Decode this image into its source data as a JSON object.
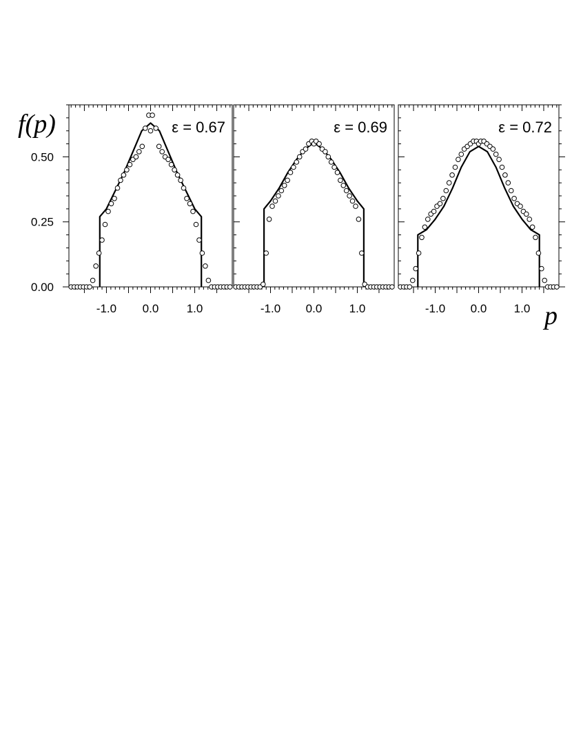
{
  "figure": {
    "ylabel": "f(p)",
    "xlabel": "p",
    "y_tick_labels": [
      "0.00",
      "0.25",
      "0.50"
    ],
    "x_tick_labels": [
      "-1.0",
      "0.0",
      "1.0"
    ]
  },
  "chart_data": [
    {
      "type": "line",
      "title": "ε = 0.67",
      "xlim": [
        -1.85,
        1.85
      ],
      "ylim": [
        0,
        0.7
      ],
      "grid": false,
      "series": [
        {
          "style": "solid-line",
          "x": [
            -1.15,
            -1.15,
            -1.0,
            -0.8,
            -0.6,
            -0.4,
            -0.2,
            0.0,
            0.2,
            0.4,
            0.6,
            0.8,
            1.0,
            1.15,
            1.15
          ],
          "y": [
            0.0,
            0.27,
            0.3,
            0.37,
            0.44,
            0.52,
            0.6,
            0.63,
            0.6,
            0.52,
            0.44,
            0.37,
            0.3,
            0.27,
            0.0
          ]
        },
        {
          "style": "open-circles",
          "x": [
            -1.8,
            -1.73,
            -1.66,
            -1.59,
            -1.52,
            -1.45,
            -1.38,
            -1.31,
            -1.24,
            -1.17,
            -1.1,
            -1.03,
            -0.96,
            -0.89,
            -0.82,
            -0.75,
            -0.68,
            -0.61,
            -0.54,
            -0.47,
            -0.4,
            -0.33,
            -0.26,
            -0.19,
            -0.12,
            -0.04,
            0.0,
            0.04,
            0.12,
            0.19,
            0.26,
            0.33,
            0.4,
            0.47,
            0.54,
            0.61,
            0.68,
            0.75,
            0.82,
            0.89,
            0.96,
            1.03,
            1.1,
            1.17,
            1.24,
            1.31,
            1.38,
            1.45,
            1.52,
            1.59,
            1.66,
            1.73,
            1.8
          ],
          "y": [
            0.0,
            0.0,
            0.0,
            0.0,
            0.0,
            0.0,
            0.0,
            0.025,
            0.08,
            0.13,
            0.18,
            0.24,
            0.29,
            0.32,
            0.34,
            0.38,
            0.41,
            0.43,
            0.45,
            0.47,
            0.49,
            0.5,
            0.52,
            0.54,
            0.61,
            0.66,
            0.6,
            0.66,
            0.61,
            0.54,
            0.52,
            0.5,
            0.49,
            0.47,
            0.45,
            0.43,
            0.41,
            0.38,
            0.34,
            0.32,
            0.29,
            0.24,
            0.18,
            0.13,
            0.08,
            0.025,
            0.0,
            0.0,
            0.0,
            0.0,
            0.0,
            0.0,
            0.0
          ]
        }
      ]
    },
    {
      "type": "line",
      "title": "ε = 0.69",
      "xlim": [
        -1.85,
        1.85
      ],
      "ylim": [
        0,
        0.7
      ],
      "grid": false,
      "series": [
        {
          "style": "solid-line",
          "x": [
            -1.15,
            -1.15,
            -1.0,
            -0.8,
            -0.6,
            -0.4,
            -0.2,
            0.0,
            0.2,
            0.4,
            0.6,
            0.8,
            1.0,
            1.15,
            1.15
          ],
          "y": [
            0.0,
            0.3,
            0.33,
            0.38,
            0.44,
            0.49,
            0.53,
            0.555,
            0.53,
            0.49,
            0.44,
            0.38,
            0.33,
            0.3,
            0.0
          ]
        },
        {
          "style": "open-circles",
          "x": [
            -1.8,
            -1.73,
            -1.66,
            -1.59,
            -1.52,
            -1.45,
            -1.38,
            -1.31,
            -1.24,
            -1.17,
            -1.1,
            -1.03,
            -0.96,
            -0.89,
            -0.82,
            -0.75,
            -0.68,
            -0.61,
            -0.54,
            -0.47,
            -0.4,
            -0.33,
            -0.26,
            -0.19,
            -0.12,
            -0.05,
            0.0,
            0.05,
            0.12,
            0.19,
            0.26,
            0.33,
            0.4,
            0.47,
            0.54,
            0.61,
            0.68,
            0.75,
            0.82,
            0.89,
            0.96,
            1.03,
            1.1,
            1.17,
            1.24,
            1.31,
            1.38,
            1.45,
            1.52,
            1.59,
            1.66,
            1.73,
            1.8
          ],
          "y": [
            0.0,
            0.0,
            0.0,
            0.0,
            0.0,
            0.0,
            0.0,
            0.0,
            0.0,
            0.01,
            0.13,
            0.26,
            0.31,
            0.33,
            0.35,
            0.37,
            0.39,
            0.41,
            0.44,
            0.46,
            0.48,
            0.5,
            0.52,
            0.53,
            0.55,
            0.56,
            0.55,
            0.56,
            0.55,
            0.53,
            0.52,
            0.5,
            0.48,
            0.46,
            0.44,
            0.41,
            0.39,
            0.37,
            0.35,
            0.33,
            0.31,
            0.26,
            0.13,
            0.01,
            0.0,
            0.0,
            0.0,
            0.0,
            0.0,
            0.0,
            0.0,
            0.0,
            0.0
          ]
        }
      ]
    },
    {
      "type": "line",
      "title": "ε = 0.72",
      "xlim": [
        -1.85,
        1.85
      ],
      "ylim": [
        0,
        0.7
      ],
      "grid": false,
      "series": [
        {
          "style": "solid-line",
          "x": [
            -1.4,
            -1.4,
            -1.2,
            -1.0,
            -0.8,
            -0.6,
            -0.4,
            -0.2,
            0.0,
            0.2,
            0.4,
            0.6,
            0.8,
            1.0,
            1.2,
            1.4,
            1.4
          ],
          "y": [
            0.0,
            0.2,
            0.22,
            0.26,
            0.31,
            0.38,
            0.46,
            0.52,
            0.54,
            0.52,
            0.46,
            0.38,
            0.31,
            0.26,
            0.22,
            0.2,
            0.0
          ]
        },
        {
          "style": "open-circles",
          "x": [
            -1.8,
            -1.73,
            -1.66,
            -1.59,
            -1.52,
            -1.45,
            -1.38,
            -1.31,
            -1.24,
            -1.17,
            -1.1,
            -1.03,
            -0.96,
            -0.89,
            -0.82,
            -0.75,
            -0.68,
            -0.61,
            -0.54,
            -0.47,
            -0.4,
            -0.33,
            -0.26,
            -0.19,
            -0.12,
            -0.05,
            0.0,
            0.05,
            0.12,
            0.19,
            0.26,
            0.33,
            0.4,
            0.47,
            0.54,
            0.61,
            0.68,
            0.75,
            0.82,
            0.89,
            0.96,
            1.03,
            1.1,
            1.17,
            1.24,
            1.31,
            1.38,
            1.45,
            1.52,
            1.59,
            1.66,
            1.73,
            1.8
          ],
          "y": [
            0.0,
            0.0,
            0.0,
            0.0,
            0.025,
            0.07,
            0.13,
            0.19,
            0.23,
            0.26,
            0.28,
            0.29,
            0.31,
            0.32,
            0.34,
            0.37,
            0.4,
            0.43,
            0.46,
            0.49,
            0.51,
            0.53,
            0.54,
            0.55,
            0.56,
            0.56,
            0.55,
            0.56,
            0.56,
            0.55,
            0.54,
            0.53,
            0.51,
            0.49,
            0.46,
            0.43,
            0.4,
            0.37,
            0.34,
            0.32,
            0.31,
            0.29,
            0.28,
            0.26,
            0.23,
            0.19,
            0.13,
            0.07,
            0.025,
            0.0,
            0.0,
            0.0,
            0.0
          ]
        }
      ]
    }
  ]
}
